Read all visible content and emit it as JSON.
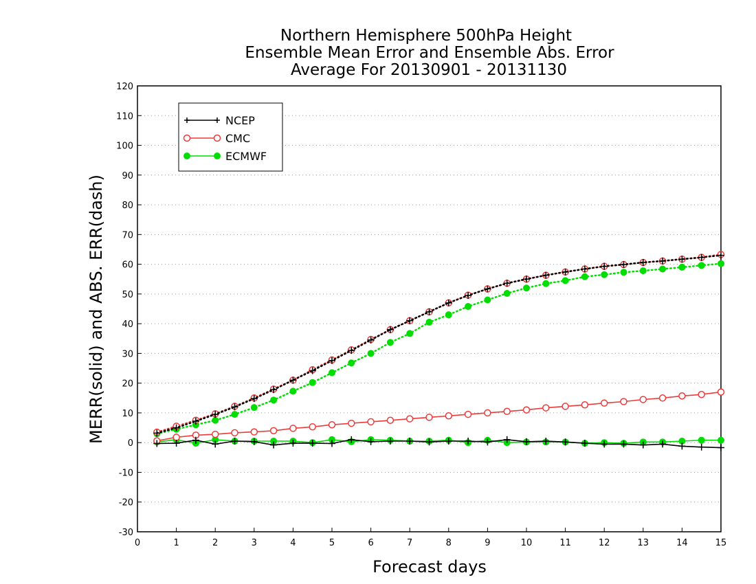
{
  "chart_data": {
    "type": "line",
    "title": [
      "Northern Hemisphere 500hPa Height",
      "Ensemble Mean Error and Ensemble Abs. Error",
      "Average For 20130901 - 20131130"
    ],
    "xlabel": "Forecast days",
    "ylabel": "MERR(solid) and ABS. ERR(dash)",
    "xlim": [
      0,
      15
    ],
    "ylim": [
      -30,
      120
    ],
    "xticks": [
      0,
      1,
      2,
      3,
      4,
      5,
      6,
      7,
      8,
      9,
      10,
      11,
      12,
      13,
      14,
      15
    ],
    "yticks": [
      -30,
      -20,
      -10,
      0,
      10,
      20,
      30,
      40,
      50,
      60,
      70,
      80,
      90,
      100,
      110,
      120
    ],
    "grid": "horizontal dotted",
    "legend_position": "top-left",
    "legend": [
      "NCEP",
      "CMC",
      "ECMWF"
    ],
    "x": [
      0.5,
      1.0,
      1.5,
      2.0,
      2.5,
      3.0,
      3.5,
      4.0,
      4.5,
      5.0,
      5.5,
      6.0,
      6.5,
      7.0,
      7.5,
      8.0,
      8.5,
      9.0,
      9.5,
      10.0,
      10.5,
      11.0,
      11.5,
      12.0,
      12.5,
      13.0,
      13.5,
      14.0,
      14.5,
      15.0
    ],
    "series": [
      {
        "name": "NCEP",
        "kind": "mean_error",
        "color": "#000000",
        "marker": "plus",
        "style": "solid",
        "values": [
          -0.3,
          -0.2,
          0.8,
          -0.5,
          0.5,
          0.3,
          -0.8,
          -0.2,
          -0.2,
          -0.3,
          1.0,
          0.3,
          0.5,
          0.5,
          0.2,
          0.5,
          0.5,
          0.2,
          1.0,
          0.3,
          0.5,
          0.2,
          -0.2,
          -0.5,
          -0.5,
          -0.8,
          -0.5,
          -1.2,
          -1.5,
          -1.7
        ]
      },
      {
        "name": "NCEP",
        "kind": "abs_error",
        "color": "#000000",
        "marker": "plus",
        "style": "dotted",
        "values": [
          3.2,
          5.0,
          7.2,
          9.5,
          12.0,
          14.8,
          17.8,
          21.0,
          24.2,
          27.6,
          31.0,
          34.5,
          38.0,
          41.0,
          44.0,
          47.0,
          49.5,
          51.7,
          53.6,
          55.0,
          56.3,
          57.4,
          58.4,
          59.3,
          59.9,
          60.6,
          61.1,
          61.7,
          62.3,
          63.0
        ]
      },
      {
        "name": "CMC",
        "kind": "mean_error",
        "color": "#ee3a3a",
        "marker": "open-circle",
        "style": "solid",
        "values": [
          0.6,
          1.8,
          2.5,
          2.8,
          3.3,
          3.6,
          4.0,
          4.8,
          5.3,
          6.0,
          6.5,
          7.0,
          7.5,
          8.0,
          8.5,
          9.0,
          9.5,
          10.0,
          10.5,
          11.0,
          11.7,
          12.2,
          12.7,
          13.3,
          13.8,
          14.5,
          15.0,
          15.7,
          16.2,
          17.0
        ]
      },
      {
        "name": "CMC",
        "kind": "abs_error",
        "color": "#ee3a3a",
        "marker": "open-circle",
        "style": "dotted",
        "values": [
          3.5,
          5.5,
          7.5,
          9.7,
          12.2,
          15.0,
          18.0,
          21.0,
          24.5,
          27.8,
          31.2,
          34.7,
          38.0,
          41.0,
          44.0,
          47.0,
          49.6,
          51.7,
          53.6,
          55.0,
          56.3,
          57.4,
          58.4,
          59.3,
          59.9,
          60.6,
          61.1,
          61.7,
          62.3,
          63.3
        ]
      },
      {
        "name": "ECMWF",
        "kind": "mean_error",
        "color": "#00dd00",
        "marker": "filled-circle",
        "style": "solid",
        "values": [
          0.2,
          1.0,
          -0.2,
          1.0,
          0.5,
          0.5,
          0.5,
          0.5,
          0.0,
          1.0,
          0.3,
          1.0,
          0.8,
          0.5,
          0.5,
          0.8,
          0.0,
          0.8,
          0.0,
          0.2,
          0.2,
          0.2,
          -0.2,
          0.0,
          -0.2,
          0.2,
          0.2,
          0.5,
          0.8,
          0.8
        ]
      },
      {
        "name": "ECMWF",
        "kind": "abs_error",
        "color": "#00dd00",
        "marker": "filled-circle",
        "style": "dotted",
        "values": [
          3.0,
          4.5,
          6.0,
          7.5,
          9.5,
          11.8,
          14.3,
          17.3,
          20.2,
          23.5,
          26.8,
          30.0,
          33.7,
          36.7,
          40.5,
          43.0,
          45.8,
          48.0,
          50.2,
          52.0,
          53.5,
          54.5,
          55.8,
          56.5,
          57.3,
          57.8,
          58.4,
          59.0,
          59.6,
          60.2
        ]
      }
    ]
  }
}
